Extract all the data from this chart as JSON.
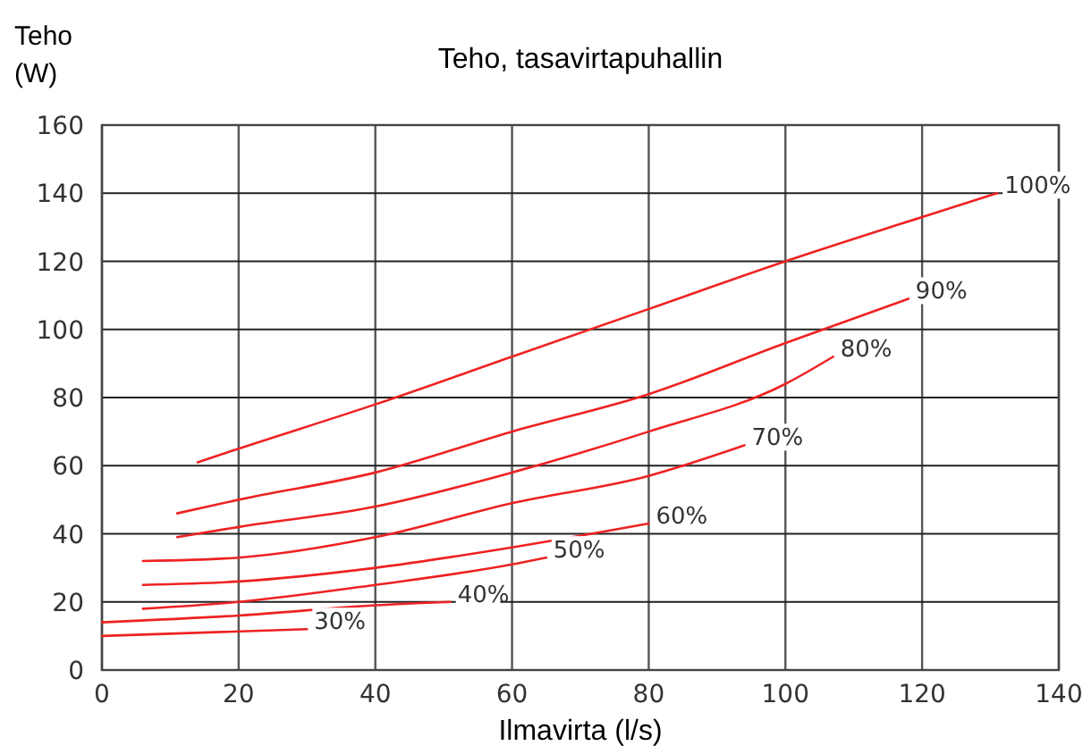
{
  "chart_data": {
    "type": "line",
    "title": "Teho, tasavirtapuhallin",
    "xlabel": "Ilmavirta (l/s)",
    "ylabel": "Teho\n(W)",
    "xlim": [
      0,
      140
    ],
    "xticks": [
      0,
      20,
      40,
      60,
      80,
      100,
      120,
      140
    ],
    "ylim": [
      0,
      160
    ],
    "yticks": [
      0,
      20,
      40,
      60,
      80,
      100,
      120,
      140,
      160
    ],
    "grid": true,
    "marker": "none",
    "line_style": "solid",
    "series": [
      {
        "name": "100%",
        "color": "#ee2222",
        "x": [
          14,
          20,
          40,
          60,
          80,
          100,
          120,
          131
        ],
        "values": [
          61,
          65,
          78,
          92,
          106,
          120,
          133,
          140
        ]
      },
      {
        "name": "90%",
        "color": "#ee2222",
        "x": [
          11,
          20,
          40,
          60,
          80,
          100,
          118
        ],
        "values": [
          46,
          50,
          58,
          70,
          81,
          96,
          109
        ]
      },
      {
        "name": "80%",
        "color": "#ee2222",
        "x": [
          11,
          20,
          40,
          60,
          80,
          100,
          107
        ],
        "values": [
          39,
          42,
          48,
          58,
          70,
          84,
          92
        ]
      },
      {
        "name": "70%",
        "color": "#ee2222",
        "x": [
          6,
          20,
          40,
          60,
          80,
          94
        ],
        "values": [
          32,
          33,
          39,
          49,
          57,
          66
        ]
      },
      {
        "name": "60%",
        "color": "#ee2222",
        "x": [
          6,
          20,
          40,
          60,
          80
        ],
        "values": [
          25,
          26,
          30,
          36,
          43
        ]
      },
      {
        "name": "50%",
        "color": "#ee2222",
        "x": [
          6,
          20,
          40,
          60,
          65
        ],
        "values": [
          18,
          20,
          25,
          31,
          33
        ]
      },
      {
        "name": "40%",
        "color": "#ee2222",
        "x": [
          0,
          20,
          40,
          51
        ],
        "values": [
          14,
          16,
          19,
          20
        ]
      },
      {
        "name": "30%",
        "color": "#ee2222",
        "x": [
          0,
          30
        ],
        "values": [
          10,
          12
        ]
      }
    ]
  }
}
